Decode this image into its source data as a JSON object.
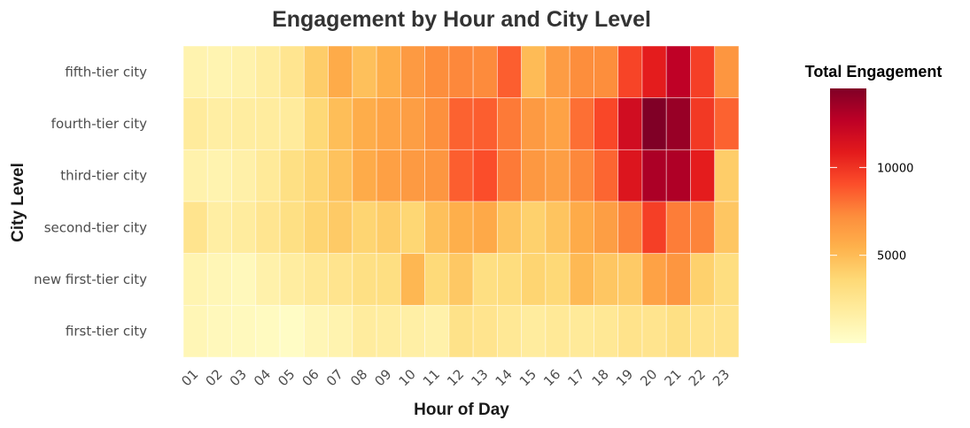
{
  "chart_data": {
    "type": "heatmap",
    "title": "Engagement by Hour and City Level",
    "xlabel": "Hour of Day",
    "ylabel": "City Level",
    "x": [
      "01",
      "02",
      "03",
      "04",
      "05",
      "06",
      "07",
      "08",
      "09",
      "10",
      "11",
      "12",
      "13",
      "14",
      "15",
      "16",
      "17",
      "18",
      "19",
      "20",
      "21",
      "22",
      "23"
    ],
    "y": [
      "fifth-tier city",
      "fourth-tier city",
      "third-tier city",
      "second-tier city",
      "new first-tier city",
      "first-tier city"
    ],
    "values": [
      [
        1200,
        1100,
        1300,
        1800,
        2500,
        4200,
        5800,
        4800,
        5600,
        6600,
        7200,
        7400,
        7300,
        8600,
        5000,
        6500,
        7200,
        7200,
        9400,
        10800,
        12600,
        9600,
        6800
      ],
      [
        2000,
        1700,
        1800,
        1900,
        2000,
        3600,
        4900,
        5700,
        6100,
        6400,
        7100,
        8500,
        8600,
        7800,
        6600,
        6200,
        8100,
        9300,
        11800,
        14500,
        13800,
        9800,
        8500
      ],
      [
        1300,
        1200,
        1500,
        2100,
        3000,
        3800,
        4700,
        5800,
        6300,
        6600,
        6800,
        8600,
        9100,
        7800,
        6700,
        6400,
        7400,
        8400,
        11200,
        13200,
        13100,
        10800,
        4200
      ],
      [
        2600,
        1700,
        1900,
        2500,
        3000,
        3800,
        4300,
        3800,
        4200,
        3700,
        4800,
        5600,
        5900,
        4600,
        4000,
        4600,
        5800,
        6400,
        7500,
        9600,
        7700,
        7500,
        4500
      ],
      [
        1100,
        900,
        700,
        1400,
        1800,
        2300,
        2600,
        3000,
        3100,
        5200,
        3500,
        4400,
        3100,
        3300,
        3800,
        3600,
        5100,
        4500,
        4300,
        6200,
        6800,
        4000,
        3200
      ],
      [
        900,
        700,
        600,
        500,
        300,
        900,
        1200,
        1900,
        1800,
        1600,
        1400,
        2800,
        2600,
        2300,
        1900,
        2200,
        2100,
        2300,
        2700,
        2600,
        3000,
        2700,
        2700
      ]
    ],
    "legend_title": "Total Engagement",
    "legend_ticks": [
      5000,
      10000
    ],
    "colorbar_range": [
      0,
      14500
    ],
    "colors": [
      "#FFFFCC",
      "#FFEDA0",
      "#FED976",
      "#FEB24C",
      "#FD8D3C",
      "#FC4E2A",
      "#E31A1C",
      "#BD0026",
      "#800026"
    ],
    "grid": false,
    "legend_position": "right"
  }
}
